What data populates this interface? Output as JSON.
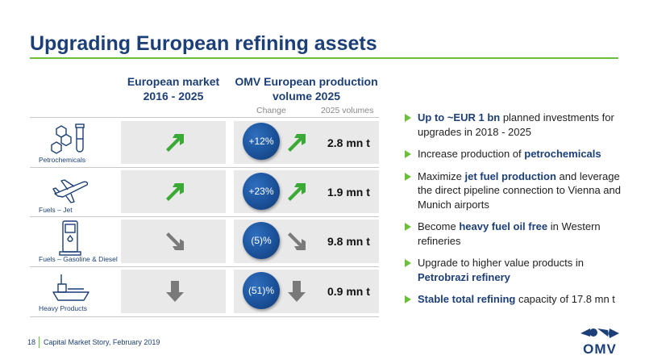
{
  "title": "Upgrading European refining assets",
  "columns": {
    "market_line1": "European market",
    "market_line2": "2016 - 2025",
    "prod_line1": "OMV European production",
    "prod_line2": "volume 2025",
    "change": "Change",
    "volumes": "2025 volumes"
  },
  "rows": [
    {
      "label": "Petrochemicals",
      "icon": "chemistry-molecule-icon",
      "market_trend": "up",
      "change": "+12%",
      "change_trend": "up",
      "volume": "2.8 mn t"
    },
    {
      "label": "Fuels – Jet",
      "icon": "airplane-icon",
      "market_trend": "up",
      "change": "+23%",
      "change_trend": "up",
      "volume": "1.9 mn t"
    },
    {
      "label": "Fuels – Gasoline & Diesel",
      "icon": "fuel-pump-icon",
      "market_trend": "down",
      "change": "(5)%",
      "change_trend": "down",
      "volume": "9.8 mn t"
    },
    {
      "label": "Heavy Products",
      "icon": "ship-icon",
      "market_trend": "flat-down",
      "change": "(51)%",
      "change_trend": "flat-down",
      "volume": "0.9 mn t"
    }
  ],
  "bullets": [
    {
      "parts": [
        {
          "t": "Up to ~EUR 1 bn",
          "h": true
        },
        {
          "t": " planned investments for upgrades in 2018 - 2025",
          "h": false
        }
      ]
    },
    {
      "parts": [
        {
          "t": "Increase production of ",
          "h": false
        },
        {
          "t": "petrochemicals",
          "h": true
        }
      ]
    },
    {
      "parts": [
        {
          "t": "Maximize ",
          "h": false
        },
        {
          "t": "jet fuel production",
          "h": true
        },
        {
          "t": " and leverage the direct pipeline connection to Vienna and Munich airports",
          "h": false
        }
      ]
    },
    {
      "parts": [
        {
          "t": "Become ",
          "h": false
        },
        {
          "t": "heavy fuel oil free",
          "h": true
        },
        {
          "t": " in Western refineries",
          "h": false
        }
      ]
    },
    {
      "parts": [
        {
          "t": "Upgrade to higher value products in ",
          "h": false
        },
        {
          "t": "Petrobrazi refinery",
          "h": true
        }
      ]
    },
    {
      "parts": [
        {
          "t": "Stable total refining",
          "h": true
        },
        {
          "t": " capacity of 17.8 mn t",
          "h": false
        }
      ]
    }
  ],
  "footer": {
    "page": "18",
    "text": "Capital Market Story, February 2019"
  },
  "logo": {
    "text": "OMV"
  },
  "colors": {
    "navy": "#1c3f77",
    "green": "#3aa935",
    "grey_arrow": "#7a7a7a",
    "accent": "#6bbf3a"
  }
}
